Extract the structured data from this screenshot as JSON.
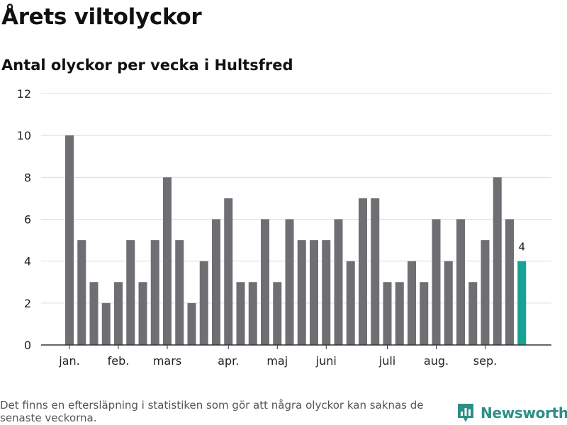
{
  "header": {
    "title": "Årets viltolyckor",
    "subtitle": "Antal olyckor per vecka i Hultsfred"
  },
  "footnote": "Det finns en eftersläpning i statistiken som gör att några olyckor kan saknas de senaste veckorna.",
  "brand": {
    "name": "Newsworthy",
    "color": "#2b8f86"
  },
  "colors": {
    "bar": "#6f6e73",
    "highlight": "#18a195",
    "grid": "#dcdcdc",
    "axis": "#333333"
  },
  "chart_data": {
    "type": "bar",
    "x_unit": "week",
    "values": [
      10,
      5,
      3,
      2,
      3,
      5,
      3,
      5,
      8,
      5,
      2,
      4,
      6,
      7,
      3,
      3,
      6,
      3,
      6,
      5,
      5,
      5,
      6,
      4,
      7,
      7,
      3,
      3,
      4,
      3,
      6,
      4,
      6,
      3,
      5,
      8,
      6,
      4
    ],
    "highlight_index": 37,
    "highlight_label": "4",
    "month_labels": [
      {
        "label": "jan.",
        "index": 0
      },
      {
        "label": "feb.",
        "index": 4
      },
      {
        "label": "mars",
        "index": 8
      },
      {
        "label": "apr.",
        "index": 13
      },
      {
        "label": "maj",
        "index": 17
      },
      {
        "label": "juni",
        "index": 21
      },
      {
        "label": "juli",
        "index": 26
      },
      {
        "label": "aug.",
        "index": 30
      },
      {
        "label": "sep.",
        "index": 34
      }
    ],
    "y_ticks": [
      0,
      2,
      4,
      6,
      8,
      10,
      12
    ],
    "ylim": [
      0,
      12
    ],
    "grid": true
  }
}
